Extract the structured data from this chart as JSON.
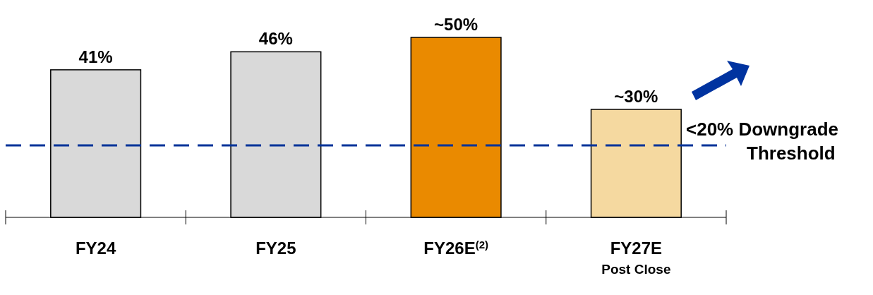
{
  "chart_data": {
    "type": "bar",
    "categories": [
      "FY24",
      "FY25",
      "FY26E$^{(2)}$",
      "FY27E"
    ],
    "values": [
      41,
      46,
      50,
      30
    ],
    "colors": [
      "#d9d9d9",
      "#d9d9d9",
      "#ea8a00",
      "#f5d9a0"
    ],
    "value_labels": [
      "41%",
      "46%",
      "~50%",
      "~30%"
    ],
    "ref_lines": [
      {
        "axis": "y",
        "value": 20,
        "label": "<20% Downgrade Threshold",
        "color": "#003399",
        "line_style": "dashed"
      }
    ],
    "annotations": [
      "Post Close"
    ]
  }
}
